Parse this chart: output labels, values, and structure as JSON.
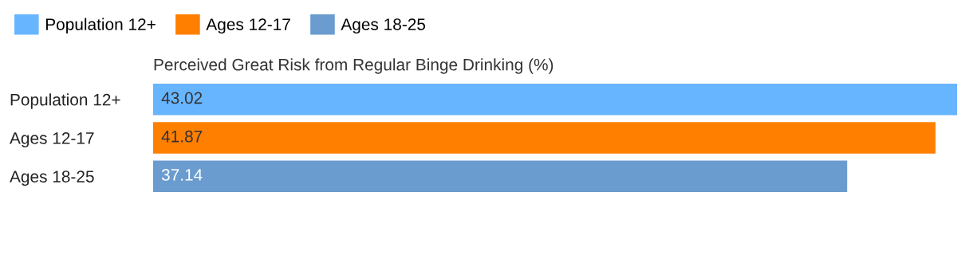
{
  "chart_data": {
    "type": "bar",
    "orientation": "horizontal",
    "title": "Perceived Great Risk from Regular Binge Drinking (%)",
    "categories": [
      "Population 12+",
      "Ages 12-17",
      "Ages 18-25"
    ],
    "series": [
      {
        "name": "Population 12+",
        "color": "#68b5ff",
        "values": [
          43.02,
          null,
          null
        ]
      },
      {
        "name": "Ages 12-17",
        "color": "#ff7f00",
        "values": [
          null,
          41.87,
          null
        ]
      },
      {
        "name": "Ages 18-25",
        "color": "#6a9ccf",
        "values": [
          null,
          null,
          37.14
        ]
      }
    ],
    "data_labels": true,
    "legend": "top left",
    "grid": false,
    "tick_labels": "y"
  }
}
